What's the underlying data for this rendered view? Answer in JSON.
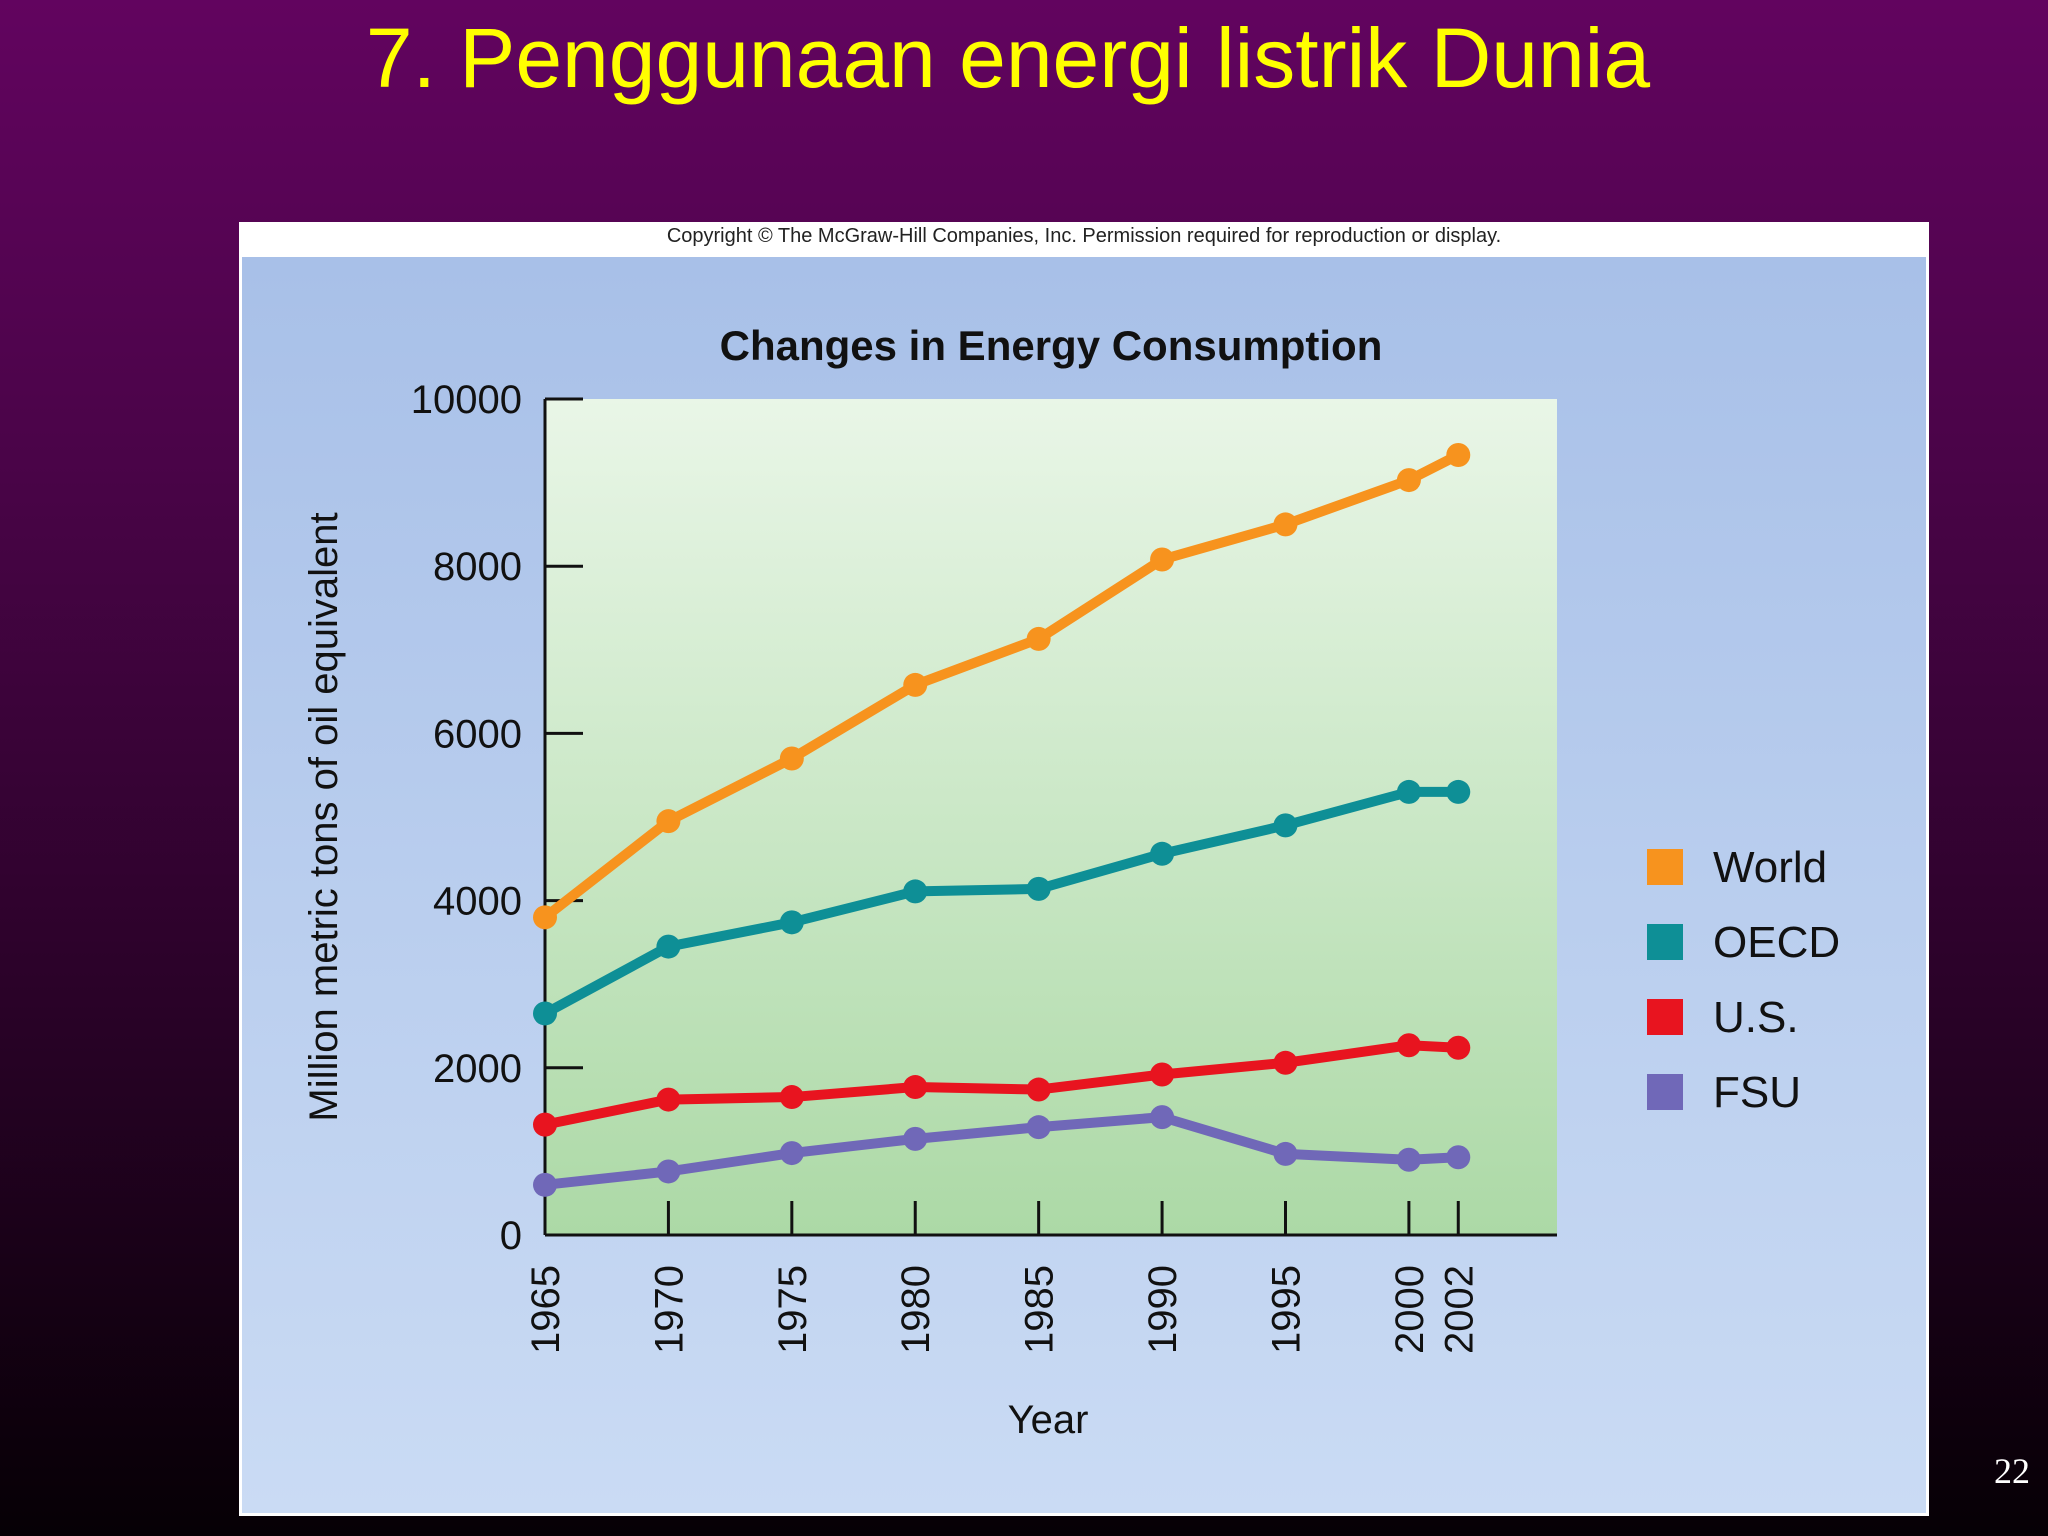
{
  "slide": {
    "title": "7. Penggunaan energi listrik Dunia",
    "page_number": "22"
  },
  "figure": {
    "copyright": "Copyright © The McGraw-Hill Companies, Inc. Permission required for reproduction or display."
  },
  "colors": {
    "title_text": "#ffff00",
    "world": "#f7931e",
    "oecd": "#0e8f96",
    "us": "#e8141f",
    "fsu": "#7068b8"
  },
  "chart_data": {
    "type": "line",
    "title": "Changes in Energy Consumption",
    "xlabel": "Year",
    "ylabel": "Million metric tons of oil equivalent",
    "x": [
      1965,
      1970,
      1975,
      1980,
      1985,
      1990,
      1995,
      2000,
      2002
    ],
    "x_tick_labels": [
      "1965",
      "1970",
      "1975",
      "1980",
      "1985",
      "1990",
      "1995",
      "2000",
      "2002"
    ],
    "xlim": [
      1965,
      2006
    ],
    "ylim": [
      0,
      10000
    ],
    "y_ticks": [
      0,
      2000,
      4000,
      6000,
      8000,
      10000
    ],
    "y_tick_labels": [
      "0",
      "2000",
      "4000",
      "6000",
      "8000",
      "10000"
    ],
    "legend_position": "right",
    "grid": false,
    "series": [
      {
        "name": "World",
        "color": "#f7931e",
        "values": [
          3800,
          4950,
          5700,
          6580,
          7130,
          8080,
          8500,
          9030,
          9330
        ]
      },
      {
        "name": "OECD",
        "color": "#0e8f96",
        "values": [
          2650,
          3450,
          3740,
          4110,
          4140,
          4560,
          4900,
          5300,
          5300
        ]
      },
      {
        "name": "U.S.",
        "color": "#e8141f",
        "values": [
          1320,
          1620,
          1650,
          1770,
          1740,
          1920,
          2060,
          2270,
          2240
        ]
      },
      {
        "name": "FSU",
        "color": "#7068b8",
        "values": [
          600,
          760,
          980,
          1150,
          1290,
          1410,
          970,
          900,
          930
        ]
      }
    ]
  }
}
